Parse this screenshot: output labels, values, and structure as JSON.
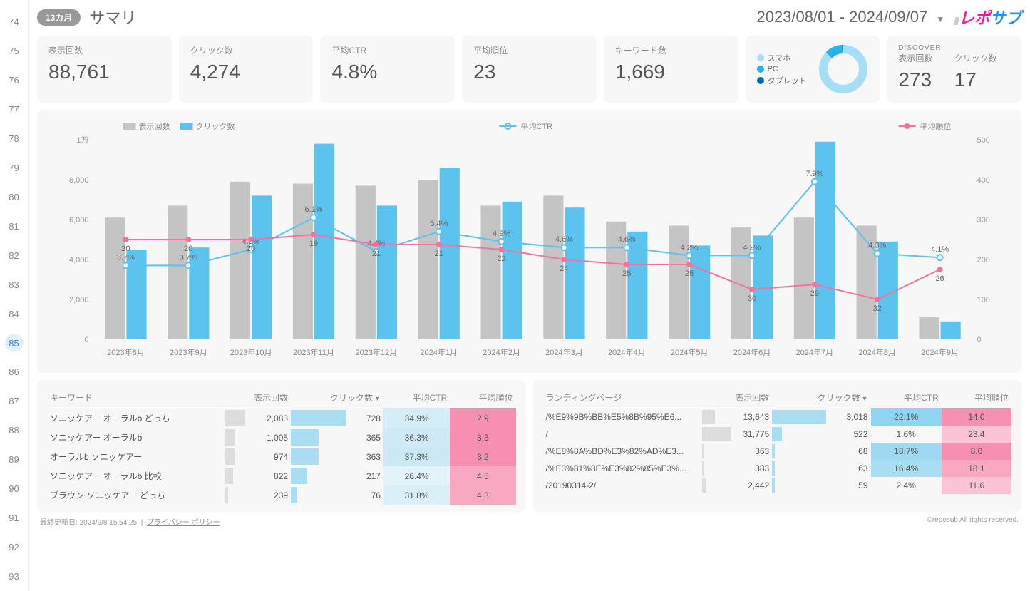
{
  "rownumbers": [
    74,
    75,
    76,
    77,
    78,
    79,
    80,
    81,
    82,
    83,
    84,
    85,
    86,
    87,
    88,
    89,
    90,
    91,
    92,
    93
  ],
  "active_row": 85,
  "header": {
    "badge": "13カ月",
    "title": "サマリ",
    "daterange": "2023/08/01 - 2024/09/07",
    "logo_text": "レポサブ"
  },
  "metrics": [
    {
      "label": "表示回数",
      "value": "88,761"
    },
    {
      "label": "クリック数",
      "value": "4,274"
    },
    {
      "label": "平均CTR",
      "value": "4.8%"
    },
    {
      "label": "平均順位",
      "value": "23"
    },
    {
      "label": "キーワード数",
      "value": "1,669"
    }
  ],
  "devices": {
    "items": [
      {
        "label": "スマホ",
        "color": "#a6dff5"
      },
      {
        "label": "PC",
        "color": "#2bb3e8"
      },
      {
        "label": "タブレット",
        "color": "#0a6aa8"
      }
    ],
    "donut": {
      "segments": [
        {
          "color": "#a6dff5",
          "pct": 87
        },
        {
          "color": "#2bb3e8",
          "pct": 12
        },
        {
          "color": "#0a6aa8",
          "pct": 1
        }
      ]
    }
  },
  "discover": {
    "title": "DISCOVER",
    "cols": [
      {
        "label": "表示回数",
        "value": "273"
      },
      {
        "label": "クリック数",
        "value": "17"
      }
    ]
  },
  "chart": {
    "type": "combo-bar-line",
    "legend": [
      {
        "label": "表示回数",
        "color": "#c4c4c4",
        "type": "bar"
      },
      {
        "label": "クリック数",
        "color": "#5bc3ee",
        "type": "bar"
      },
      {
        "label": "平均CTR",
        "color": "#5bc3ee",
        "type": "line"
      },
      {
        "label": "平均順位",
        "color": "#f472a0",
        "type": "line"
      }
    ],
    "y_left": {
      "label": "1万",
      "ticks": [
        0,
        2000,
        4000,
        6000,
        8000,
        10000
      ],
      "tick_labels": [
        "0",
        "2,000",
        "4,000",
        "6,000",
        "8,000",
        "1万"
      ]
    },
    "y_right": {
      "ticks": [
        0,
        100,
        200,
        300,
        400,
        500
      ]
    },
    "categories": [
      "2023年8月",
      "2023年9月",
      "2023年10月",
      "2023年11月",
      "2023年12月",
      "2024年1月",
      "2024年2月",
      "2024年3月",
      "2024年4月",
      "2024年5月",
      "2024年6月",
      "2024年7月",
      "2024年8月",
      "2024年9月"
    ],
    "impressions": [
      6100,
      6700,
      7900,
      7800,
      7700,
      8000,
      6700,
      7200,
      5900,
      5700,
      5600,
      6100,
      5700,
      1100
    ],
    "clicks": [
      4500,
      4600,
      7200,
      9800,
      6700,
      8600,
      6900,
      6600,
      5400,
      4700,
      5200,
      9900,
      4900,
      900
    ],
    "ctr_pct": [
      3.7,
      3.7,
      4.5,
      6.1,
      4.4,
      5.4,
      4.9,
      4.6,
      4.6,
      4.2,
      4.2,
      7.9,
      4.3,
      4.1
    ],
    "rank": [
      20,
      20,
      20,
      19,
      21,
      21,
      22,
      24,
      25,
      25,
      30,
      29,
      32,
      26
    ],
    "colors": {
      "impressions": "#c4c4c4",
      "clicks": "#5bc3ee",
      "ctr": "#5bc3ee",
      "rank": "#f472a0",
      "grid": "#e8e8e8",
      "bg": "#f7f7f7"
    },
    "ctr_scale_max": 10,
    "rank_scale_max": 40
  },
  "keyword_table": {
    "headers": [
      "キーワード",
      "表示回数",
      "クリック数",
      "平均CTR",
      "平均順位"
    ],
    "sort_col": 2,
    "rows": [
      {
        "kw": "ソニッケアー オーラルb どっち",
        "imp": "2,083",
        "imp_w": 30,
        "clk": "728",
        "clk_w": 60,
        "ctr": "34.9%",
        "ctr_bg": "#d4edf7",
        "rank": "2.9",
        "rank_bg": "#f78fb3"
      },
      {
        "kw": "ソニッケアー オーラルb",
        "imp": "1,005",
        "imp_w": 15,
        "clk": "365",
        "clk_w": 30,
        "ctr": "36.3%",
        "ctr_bg": "#cfeaf6",
        "rank": "3.3",
        "rank_bg": "#f78fb3"
      },
      {
        "kw": "オーラルb ソニッケアー",
        "imp": "974",
        "imp_w": 14,
        "clk": "363",
        "clk_w": 30,
        "ctr": "37.3%",
        "ctr_bg": "#cbe8f5",
        "rank": "3.2",
        "rank_bg": "#f78fb3"
      },
      {
        "kw": "ソニッケアー オーラルb 比較",
        "imp": "822",
        "imp_w": 12,
        "clk": "217",
        "clk_w": 18,
        "ctr": "26.4%",
        "ctr_bg": "#e3f3fa",
        "rank": "4.5",
        "rank_bg": "#f9a8c2"
      },
      {
        "kw": "ブラウン ソニッケアー どっち",
        "imp": "239",
        "imp_w": 5,
        "clk": "76",
        "clk_w": 7,
        "ctr": "31.8%",
        "ctr_bg": "#daeff8",
        "rank": "4.3",
        "rank_bg": "#f9a8c2"
      }
    ]
  },
  "landing_table": {
    "headers": [
      "ランディングページ",
      "表示回数",
      "クリック数",
      "平均CTR",
      "平均順位"
    ],
    "sort_col": 2,
    "rows": [
      {
        "pg": "/%E9%9B%BB%E5%8B%95%E6...",
        "imp": "13,643",
        "imp_w": 18,
        "clk": "3,018",
        "clk_w": 55,
        "ctr": "22.1%",
        "ctr_bg": "#8fd4f0",
        "rank": "14.0",
        "rank_bg": "#f78fb3"
      },
      {
        "pg": "/",
        "imp": "31,775",
        "imp_w": 42,
        "clk": "522",
        "clk_w": 10,
        "ctr": "1.6%",
        "ctr_bg": "#f7f7f7",
        "rank": "23.4",
        "rank_bg": "#fbc4d6"
      },
      {
        "pg": "/%E8%8A%BD%E3%82%AD%E3...",
        "imp": "363",
        "imp_w": 3,
        "clk": "68",
        "clk_w": 3,
        "ctr": "18.7%",
        "ctr_bg": "#9ed9f1",
        "rank": "8.0",
        "rank_bg": "#f78fb3"
      },
      {
        "pg": "/%E3%81%8E%E3%82%85%E3%...",
        "imp": "383",
        "imp_w": 3,
        "clk": "63",
        "clk_w": 3,
        "ctr": "16.4%",
        "ctr_bg": "#a9def2",
        "rank": "18.1",
        "rank_bg": "#f9a8c2"
      },
      {
        "pg": "/20190314-2/",
        "imp": "2,442",
        "imp_w": 5,
        "clk": "59",
        "clk_w": 3,
        "ctr": "2.4%",
        "ctr_bg": "#f7f7f7",
        "rank": "11.6",
        "rank_bg": "#fbc4d6"
      }
    ]
  },
  "footer": {
    "updated_label": "最終更新日:",
    "updated": "2024/9/8 15:54:25",
    "privacy": "プライバシー ポリシー",
    "copyright": "©reposub All rights reserved."
  }
}
